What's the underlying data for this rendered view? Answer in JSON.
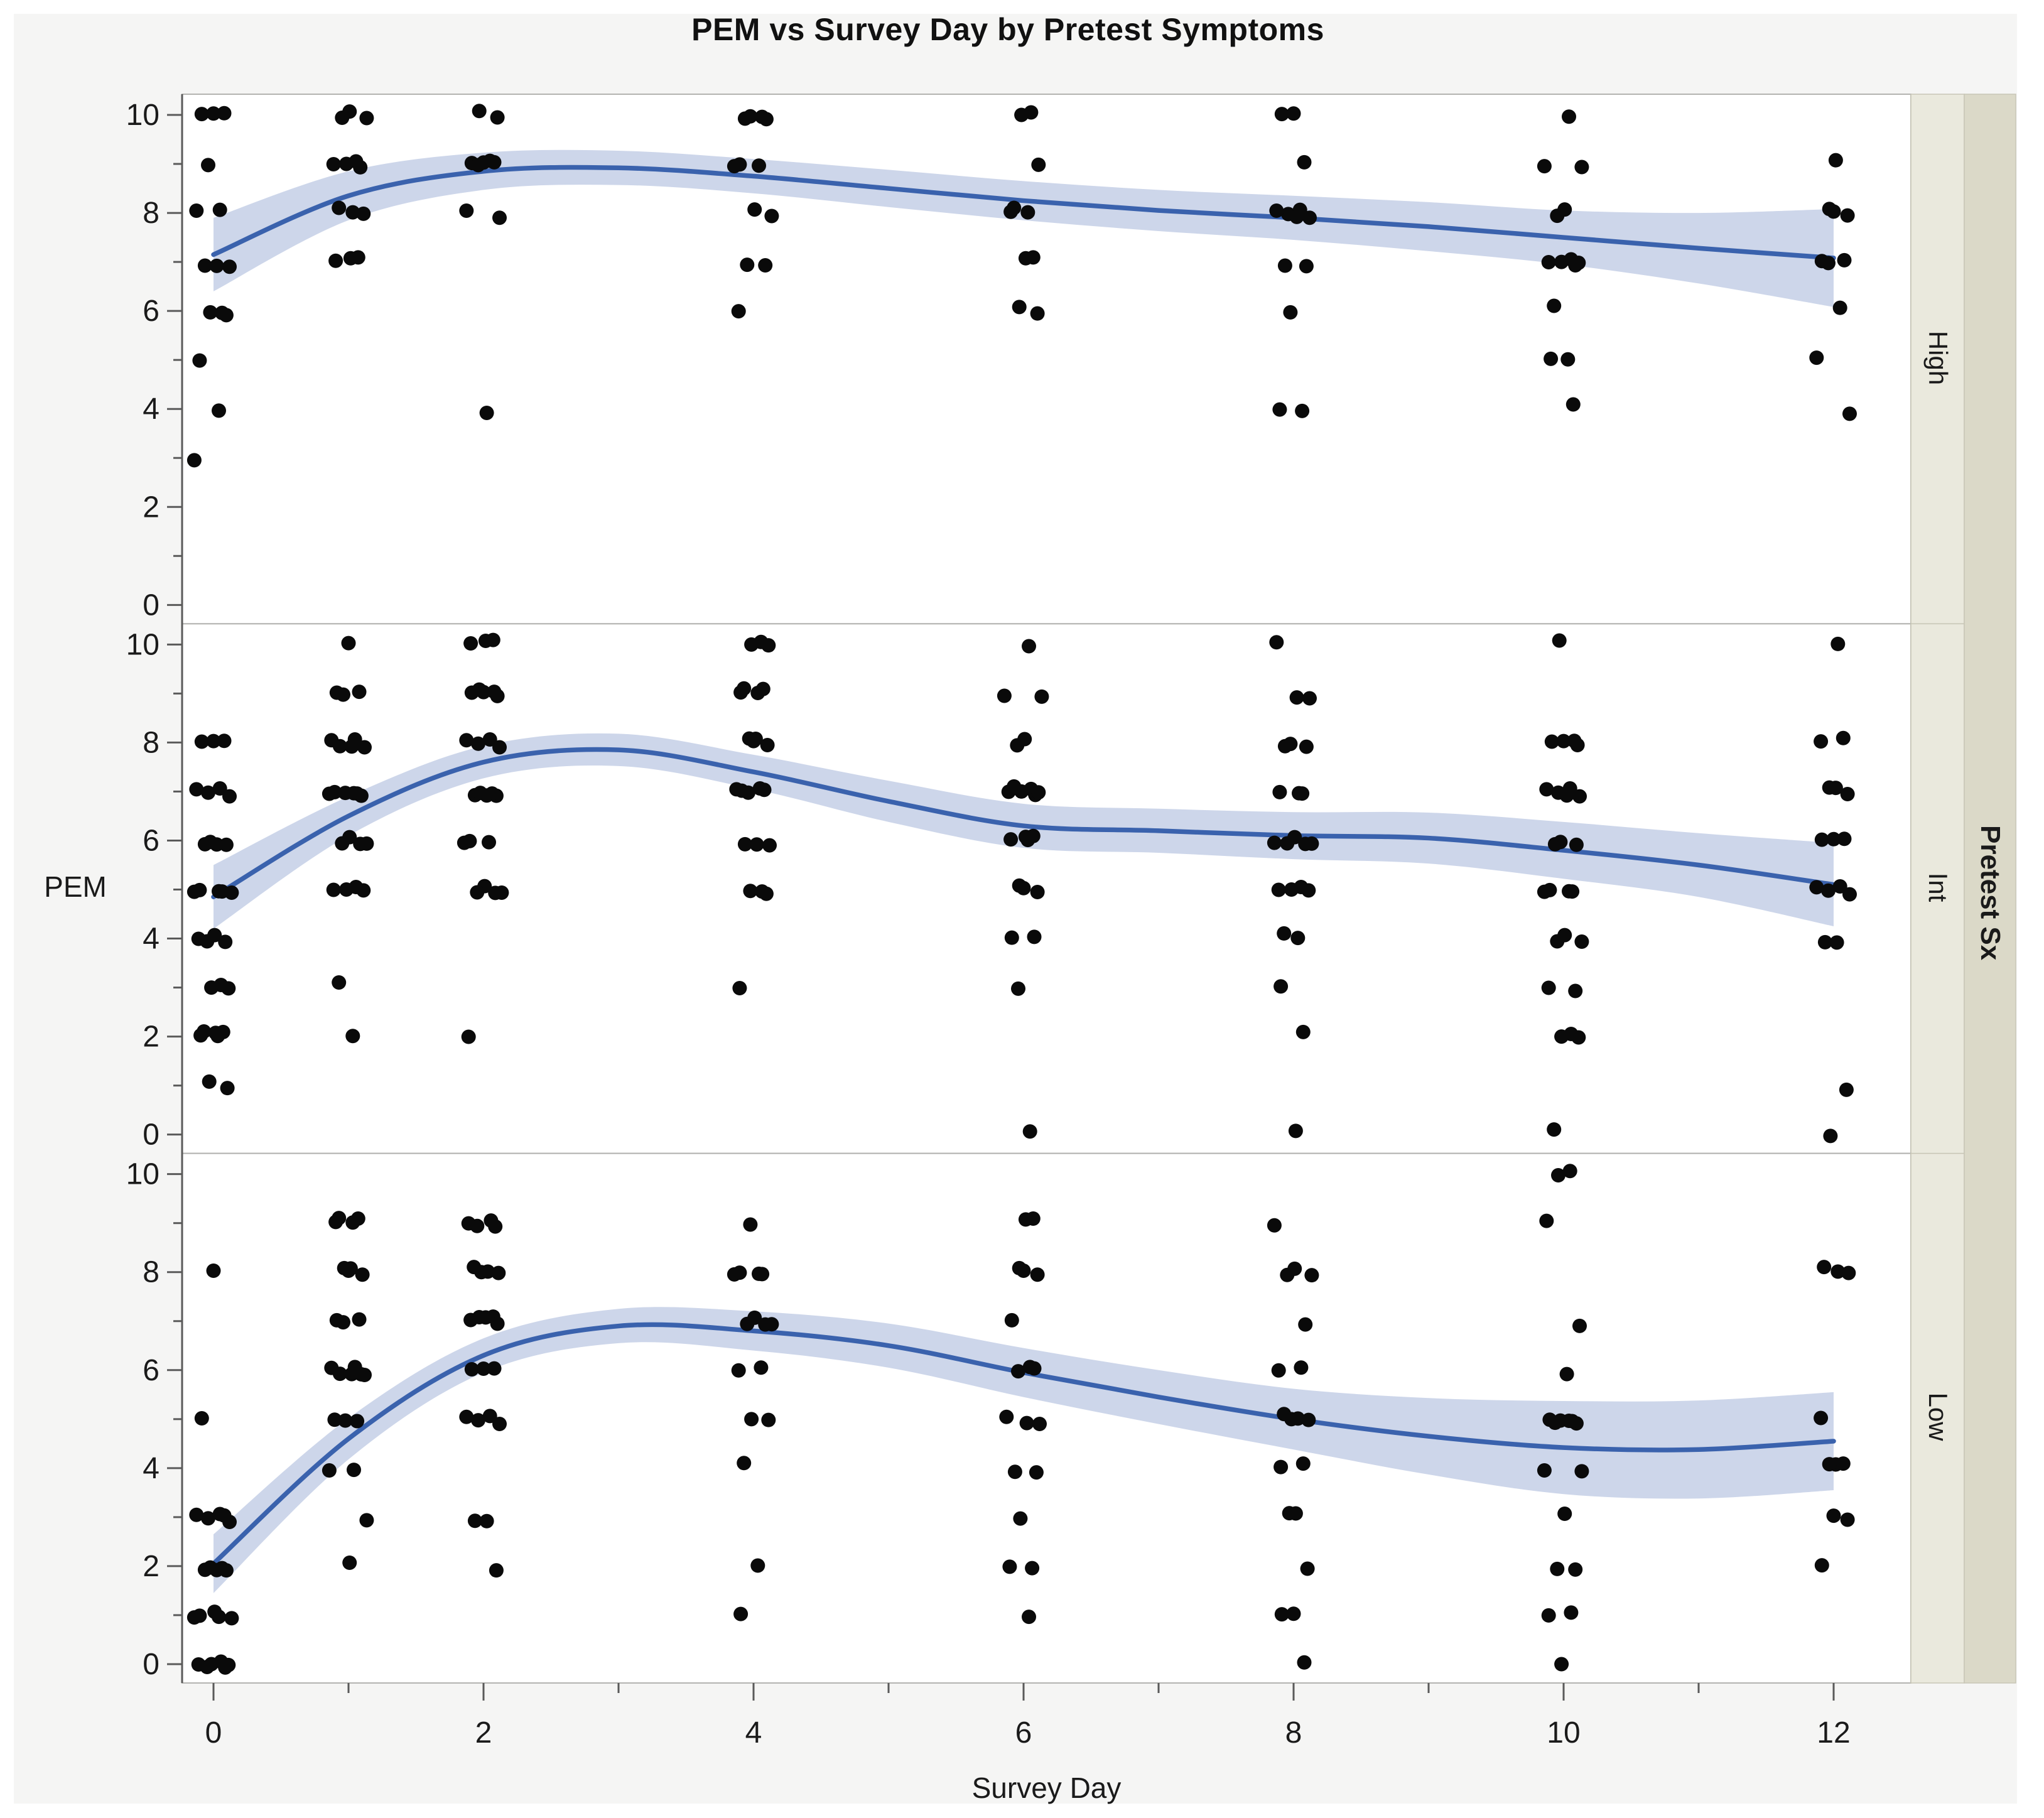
{
  "chart_data": {
    "type": "scatter",
    "title": "PEM vs Survey Day by Pretest Symptoms",
    "xlabel": "Survey Day",
    "ylabel": "PEM",
    "facet_title": "Pretest Sx",
    "x_major_ticks": [
      0,
      2,
      4,
      6,
      8,
      10,
      12
    ],
    "x_minor_ticks": [
      1,
      3,
      5,
      7,
      9,
      11
    ],
    "y_major_ticks": [
      0,
      2,
      4,
      6,
      8,
      10
    ],
    "y_minor_ticks": [
      1,
      3,
      5,
      7,
      9
    ],
    "xlim": [
      -0.25,
      12.6
    ],
    "ylim": [
      -0.45,
      10.45
    ],
    "legend": "none",
    "grid": false,
    "colors": {
      "curve": "#3a62ad",
      "band": "#cdd6ea",
      "point": "#0a0a0a",
      "panel_bg": "#ffffff",
      "figure_bg": "#f5f5f4",
      "frame": "#b3b3b0",
      "spine": "#5a5a5a",
      "tick_label": "#1a1a1a",
      "strip_inner_bg": "#eae9dd",
      "strip_outer_bg": "#dbd9c8",
      "strip_border": "#c8c6b6"
    },
    "panels": [
      {
        "label": "High",
        "points": [
          {
            "day": 0,
            "values": [
              10,
              10,
              10,
              9,
              8,
              8,
              7,
              7,
              7,
              6,
              6,
              6,
              5,
              4,
              3
            ]
          },
          {
            "day": 1,
            "values": [
              10,
              10,
              10,
              9,
              9,
              9,
              9,
              8,
              8,
              8,
              7,
              7,
              7
            ]
          },
          {
            "day": 2,
            "values": [
              10,
              10,
              9,
              9,
              9,
              9,
              9,
              8,
              8,
              4
            ]
          },
          {
            "day": 4,
            "values": [
              10,
              10,
              10,
              10,
              9,
              9,
              9,
              8,
              8,
              7,
              7,
              6
            ]
          },
          {
            "day": 6,
            "values": [
              10,
              10,
              9,
              8,
              8,
              8,
              7,
              7,
              6,
              6
            ]
          },
          {
            "day": 8,
            "values": [
              10,
              10,
              9,
              8,
              8,
              8,
              8,
              8,
              7,
              7,
              6,
              4,
              4
            ]
          },
          {
            "day": 10,
            "values": [
              10,
              9,
              9,
              8,
              8,
              7,
              7,
              7,
              7,
              7,
              6,
              5,
              5,
              4
            ]
          },
          {
            "day": 12,
            "values": [
              9,
              8,
              8,
              8,
              7,
              7,
              7,
              6,
              5,
              4
            ]
          }
        ],
        "curve_days": [
          0,
          1,
          2,
          3,
          4,
          5,
          6,
          7,
          8,
          9,
          10,
          11,
          12
        ],
        "curve_values": [
          7.15,
          8.35,
          8.85,
          8.92,
          8.75,
          8.5,
          8.25,
          8.05,
          7.9,
          7.72,
          7.5,
          7.28,
          7.08
        ],
        "band_half": [
          0.75,
          0.5,
          0.38,
          0.35,
          0.35,
          0.38,
          0.4,
          0.42,
          0.45,
          0.5,
          0.55,
          0.72,
          1.0
        ]
      },
      {
        "label": "Int",
        "points": [
          {
            "day": 0,
            "values": [
              8,
              8,
              8,
              7,
              7,
              7,
              7,
              6,
              6,
              6,
              6,
              5,
              5,
              5,
              5,
              5,
              4,
              4,
              4,
              4,
              3,
              3,
              3,
              2,
              2,
              2,
              2,
              2,
              1,
              1
            ]
          },
          {
            "day": 1,
            "values": [
              10,
              9,
              9,
              9,
              8,
              8,
              8,
              8,
              8,
              7,
              7,
              7,
              7,
              7,
              7,
              6,
              6,
              6,
              6,
              5,
              5,
              5,
              5,
              3,
              2
            ]
          },
          {
            "day": 2,
            "values": [
              10,
              10,
              10,
              9,
              9,
              9,
              9,
              9,
              8,
              8,
              8,
              8,
              7,
              7,
              7,
              7,
              7,
              6,
              6,
              6,
              5,
              5,
              5,
              5,
              2
            ]
          },
          {
            "day": 4,
            "values": [
              10,
              10,
              10,
              9,
              9,
              9,
              9,
              8,
              8,
              8,
              8,
              7,
              7,
              7,
              7,
              7,
              6,
              6,
              6,
              5,
              5,
              5,
              3
            ]
          },
          {
            "day": 6,
            "values": [
              10,
              9,
              9,
              8,
              8,
              7,
              7,
              7,
              7,
              7,
              7,
              6,
              6,
              6,
              6,
              5,
              5,
              5,
              4,
              4,
              3,
              0
            ]
          },
          {
            "day": 8,
            "values": [
              10,
              9,
              9,
              8,
              8,
              8,
              7,
              7,
              7,
              6,
              6,
              6,
              6,
              6,
              5,
              5,
              5,
              5,
              4,
              4,
              3,
              2,
              0
            ]
          },
          {
            "day": 10,
            "values": [
              10,
              8,
              8,
              8,
              8,
              7,
              7,
              7,
              7,
              7,
              6,
              6,
              6,
              5,
              5,
              5,
              5,
              4,
              4,
              4,
              3,
              3,
              2,
              2,
              2,
              0
            ]
          },
          {
            "day": 12,
            "values": [
              10,
              8,
              8,
              7,
              7,
              7,
              6,
              6,
              6,
              5,
              5,
              5,
              5,
              4,
              4,
              1,
              0
            ]
          }
        ],
        "curve_days": [
          0,
          1,
          2,
          3,
          4,
          5,
          6,
          7,
          8,
          9,
          10,
          11,
          12
        ],
        "curve_values": [
          4.85,
          6.5,
          7.6,
          7.85,
          7.4,
          6.8,
          6.3,
          6.2,
          6.1,
          6.05,
          5.8,
          5.5,
          5.1
        ],
        "band_half": [
          0.65,
          0.4,
          0.33,
          0.33,
          0.35,
          0.42,
          0.45,
          0.45,
          0.48,
          0.52,
          0.58,
          0.65,
          0.85
        ]
      },
      {
        "label": "Low",
        "points": [
          {
            "day": 0,
            "values": [
              8,
              5,
              3,
              3,
              3,
              3,
              3,
              2,
              2,
              2,
              2,
              2,
              1,
              1,
              1,
              1,
              1,
              0,
              0,
              0,
              0,
              0,
              0
            ]
          },
          {
            "day": 1,
            "values": [
              9,
              9,
              9,
              9,
              8,
              8,
              8,
              8,
              7,
              7,
              7,
              6,
              6,
              6,
              6,
              6,
              6,
              5,
              5,
              5,
              4,
              4,
              3,
              2
            ]
          },
          {
            "day": 2,
            "values": [
              9,
              9,
              9,
              9,
              8,
              8,
              8,
              8,
              7,
              7,
              7,
              7,
              7,
              6,
              6,
              6,
              5,
              5,
              5,
              5,
              3,
              3,
              2
            ]
          },
          {
            "day": 4,
            "values": [
              9,
              8,
              8,
              8,
              8,
              7,
              7,
              7,
              7,
              6,
              6,
              5,
              5,
              4,
              2,
              1
            ]
          },
          {
            "day": 6,
            "values": [
              9,
              9,
              8,
              8,
              8,
              7,
              6,
              6,
              6,
              5,
              5,
              5,
              4,
              4,
              3,
              2,
              2,
              1
            ]
          },
          {
            "day": 8,
            "values": [
              9,
              8,
              8,
              8,
              7,
              6,
              6,
              5,
              5,
              5,
              5,
              4,
              4,
              3,
              3,
              2,
              1,
              1,
              0
            ]
          },
          {
            "day": 10,
            "values": [
              10,
              10,
              9,
              7,
              6,
              5,
              5,
              5,
              5,
              5,
              5,
              4,
              4,
              3,
              2,
              2,
              1,
              1,
              0
            ]
          },
          {
            "day": 12,
            "values": [
              8,
              8,
              8,
              5,
              4,
              4,
              4,
              3,
              3,
              2
            ]
          }
        ],
        "curve_days": [
          0,
          1,
          2,
          3,
          4,
          5,
          6,
          7,
          8,
          9,
          10,
          11,
          12
        ],
        "curve_values": [
          2.05,
          4.6,
          6.3,
          6.9,
          6.8,
          6.5,
          5.95,
          5.45,
          5.0,
          4.65,
          4.42,
          4.38,
          4.55
        ],
        "band_half": [
          0.6,
          0.42,
          0.35,
          0.35,
          0.4,
          0.45,
          0.5,
          0.55,
          0.62,
          0.78,
          0.95,
          1.0,
          1.0
        ]
      }
    ]
  }
}
